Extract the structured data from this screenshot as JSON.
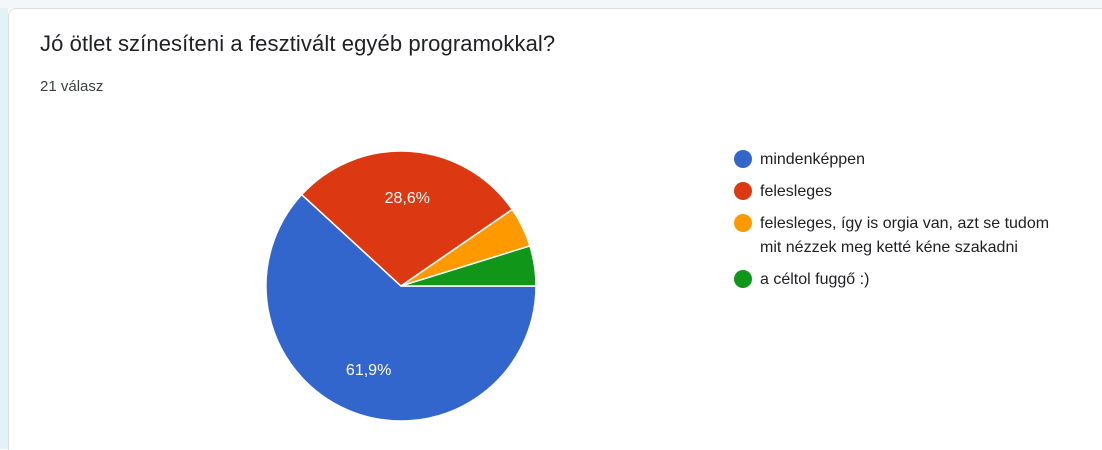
{
  "card": {
    "title": "Jó ötlet színesíteni a fesztivált egyéb programokkal?",
    "response_count": "21 válasz"
  },
  "chart_data": {
    "type": "pie",
    "categories": [
      "mindenképpen",
      "felesleges",
      "felesleges, így is orgia van, azt se tudom mit nézzek meg ketté kéne szakadni",
      "a céltol fuggő :)"
    ],
    "values": [
      61.9,
      28.6,
      4.8,
      4.8
    ],
    "slice_labels": [
      "61,9%",
      "28,6%",
      "",
      ""
    ],
    "colors": [
      "#3366cc",
      "#dc3912",
      "#ff9900",
      "#109618"
    ],
    "legend_position": "right"
  }
}
